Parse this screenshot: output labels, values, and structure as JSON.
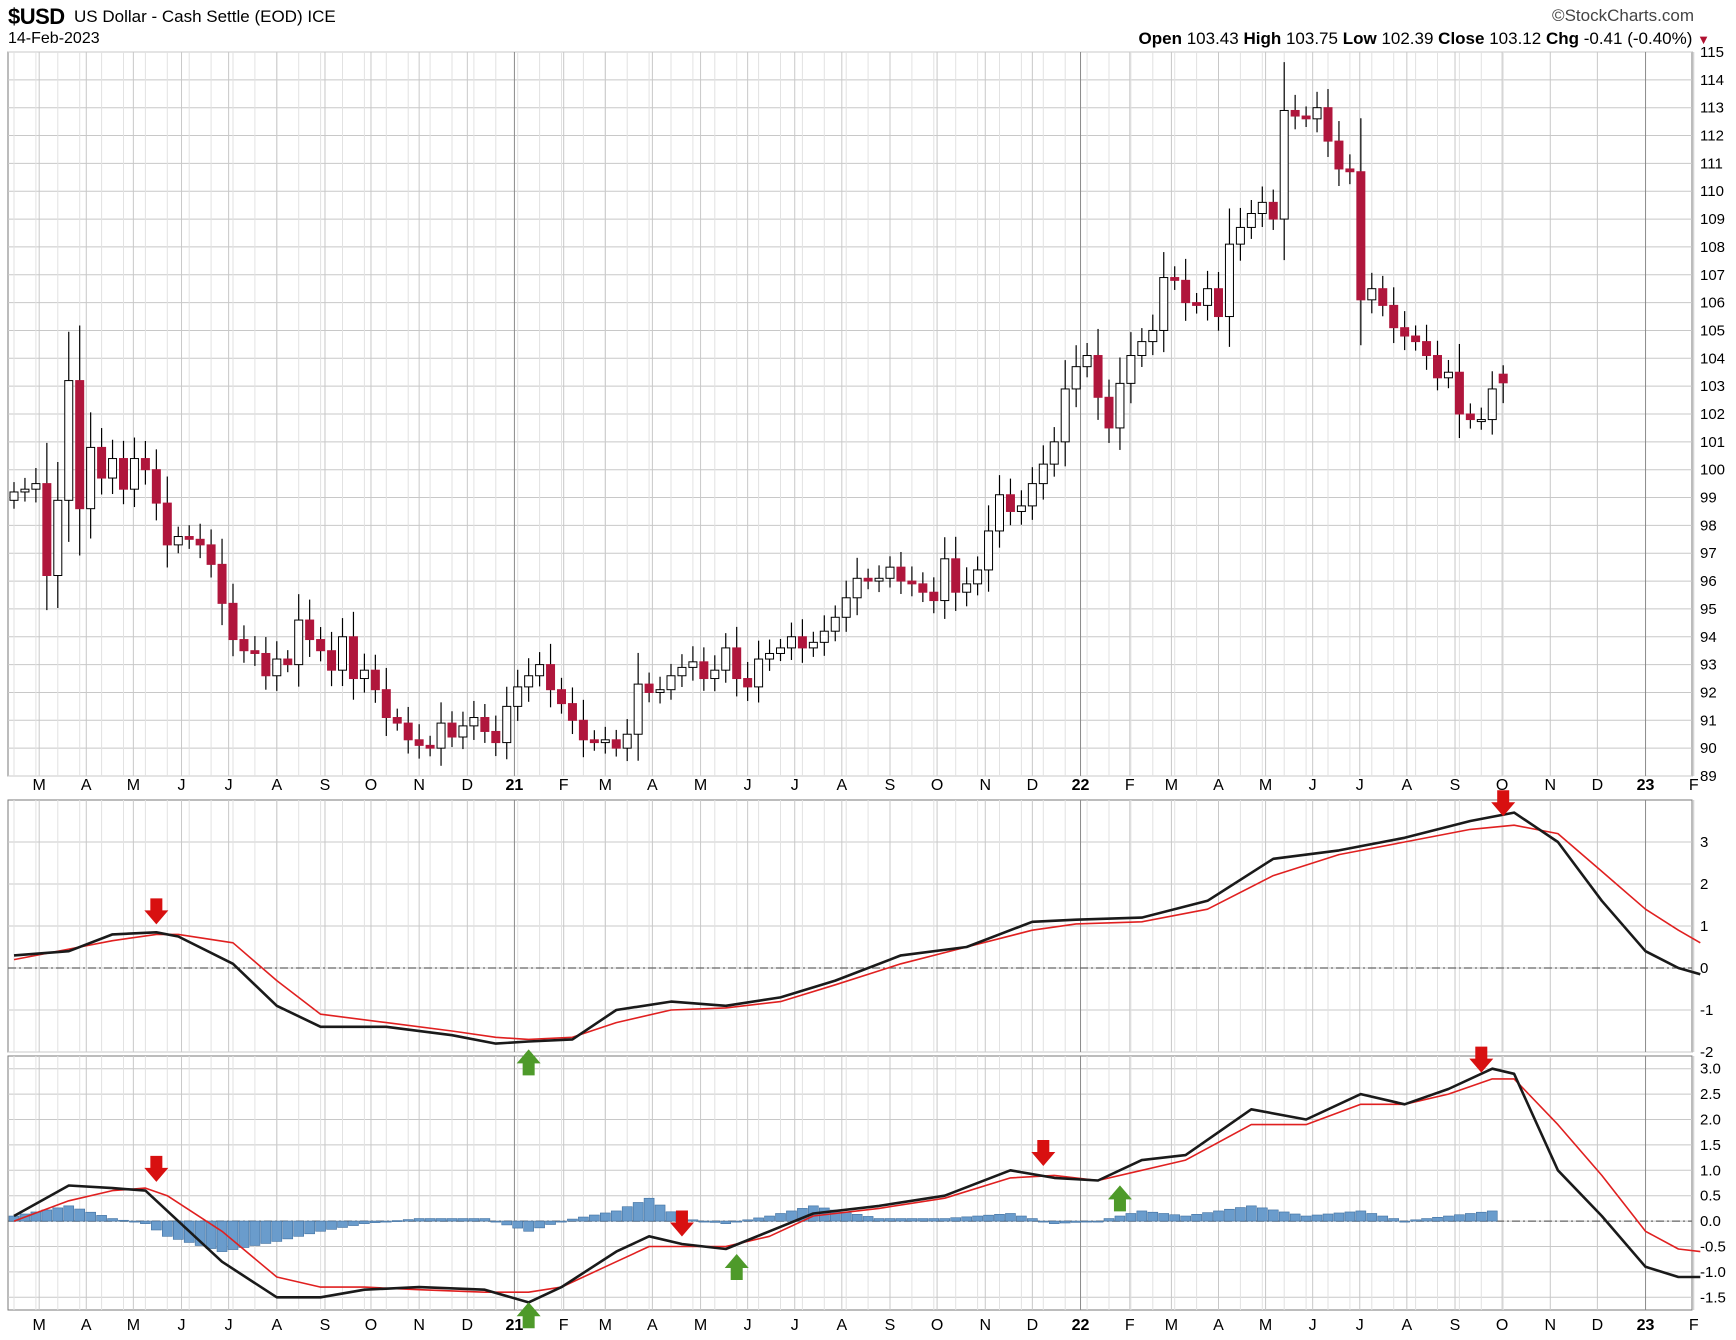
{
  "header": {
    "symbol": "$USD",
    "description": "US Dollar - Cash Settle (EOD)",
    "exchange": "ICE",
    "date": "14-Feb-2023",
    "brand": "©StockCharts.com",
    "open_label": "Open",
    "open": "103.43",
    "high_label": "High",
    "high": "103.75",
    "low_label": "Low",
    "low": "102.39",
    "close_label": "Close",
    "close": "103.12",
    "chg_label": "Chg",
    "chg": "-0.41 (-0.40%)"
  },
  "colors": {
    "up_candle": "#ffffff",
    "down_candle": "#b0163c",
    "candle_outline": "#000000",
    "signal_line": "#e02020",
    "macd_line": "#1a1a1a",
    "histogram": "#6a9ccc",
    "sell_arrow": "#d81010",
    "buy_arrow": "#4e9a2a",
    "grid": "#c8c8c8"
  },
  "chart_data": [
    {
      "type": "candlestick",
      "title": "",
      "ylim": [
        89,
        115
      ],
      "y_ticks": [
        89,
        90,
        91,
        92,
        93,
        94,
        95,
        96,
        97,
        98,
        99,
        100,
        101,
        102,
        103,
        104,
        105,
        106,
        107,
        108,
        109,
        110,
        111,
        112,
        113,
        114,
        115
      ],
      "x_ticks": [
        "M",
        "A",
        "M",
        "J",
        "J",
        "A",
        "S",
        "O",
        "N",
        "D",
        "21",
        "F",
        "M",
        "A",
        "M",
        "J",
        "J",
        "A",
        "S",
        "O",
        "N",
        "D",
        "22",
        "F",
        "M",
        "A",
        "M",
        "J",
        "J",
        "A",
        "S",
        "O",
        "N",
        "D",
        "23",
        "F"
      ],
      "x_tick_weeks": [
        2.3,
        6.6,
        10.9,
        15.3,
        19.6,
        24.0,
        28.4,
        32.6,
        37.0,
        41.4,
        45.7,
        50.2,
        54.0,
        58.3,
        62.7,
        67.0,
        71.3,
        75.6,
        80.0,
        84.3,
        88.7,
        93.0,
        97.4,
        101.9,
        105.7,
        110.0,
        114.3,
        118.6,
        122.9,
        127.2,
        131.6,
        135.9,
        140.3,
        144.6,
        149.0,
        153.4
      ],
      "major_x_ticks": [
        "21",
        "22",
        "23"
      ],
      "grid": true,
      "weekly_close": [
        99.2,
        99.3,
        99.5,
        96.2,
        98.9,
        103.2,
        98.6,
        100.8,
        99.7,
        100.4,
        99.3,
        100.4,
        100.0,
        98.8,
        97.3,
        97.6,
        97.5,
        97.3,
        96.6,
        95.2,
        93.9,
        93.5,
        93.4,
        92.6,
        93.2,
        93.0,
        94.6,
        93.9,
        93.5,
        92.8,
        94.0,
        92.5,
        92.8,
        92.1,
        91.1,
        90.9,
        90.3,
        90.1,
        90.0,
        90.9,
        90.4,
        90.8,
        91.1,
        90.6,
        90.2,
        91.5,
        92.2,
        92.6,
        93.0,
        92.1,
        91.6,
        91.0,
        90.3,
        90.2,
        90.3,
        90.0,
        90.5,
        92.3,
        92.0,
        92.1,
        92.6,
        92.9,
        93.1,
        92.5,
        92.8,
        93.6,
        92.5,
        92.2,
        93.2,
        93.4,
        93.6,
        94.0,
        93.6,
        93.8,
        94.2,
        94.7,
        95.4,
        96.1,
        96.0,
        96.1,
        96.5,
        96.0,
        95.9,
        95.6,
        95.3,
        96.8,
        95.6,
        95.9,
        96.4,
        97.8,
        99.1,
        98.5,
        98.7,
        99.5,
        100.2,
        101.0,
        102.9,
        103.7,
        104.1,
        102.6,
        101.5,
        103.1,
        104.1,
        104.6,
        105.0,
        106.9,
        106.8,
        106.0,
        105.9,
        106.5,
        105.5,
        108.1,
        108.7,
        109.2,
        109.6,
        109.0,
        112.9,
        112.7,
        112.6,
        113.0,
        111.8,
        110.8,
        110.7,
        106.1,
        106.5,
        105.9,
        105.1,
        104.8,
        104.6,
        104.1,
        103.3,
        103.5,
        102.0,
        101.8,
        101.8,
        102.9,
        103.12
      ],
      "last": {
        "open": 103.43,
        "high": 103.75,
        "low": 102.39,
        "close": 103.12
      }
    },
    {
      "type": "line",
      "title": "",
      "ylim": [
        -2,
        4
      ],
      "y_ticks": [
        -2,
        -1,
        0,
        1,
        2,
        3
      ],
      "reference_line": 0,
      "x": [
        0,
        5,
        9,
        13,
        15,
        20,
        24,
        28,
        34,
        40,
        44,
        47,
        51,
        55,
        60,
        65,
        70,
        75,
        81,
        87,
        93,
        97,
        103,
        109,
        115,
        121,
        127,
        133,
        137,
        141,
        145,
        149,
        152,
        154
      ],
      "series": [
        {
          "values": [
            0.3,
            0.4,
            0.8,
            0.85,
            0.75,
            0.1,
            -0.9,
            -1.4,
            -1.4,
            -1.6,
            -1.8,
            -1.75,
            -1.7,
            -1.0,
            -0.8,
            -0.9,
            -0.7,
            -0.3,
            0.3,
            0.5,
            1.1,
            1.15,
            1.2,
            1.6,
            2.6,
            2.8,
            3.1,
            3.5,
            3.7,
            3.0,
            1.6,
            0.4,
            0.0,
            -0.15
          ]
        },
        {
          "values": [
            0.2,
            0.45,
            0.65,
            0.8,
            0.8,
            0.6,
            -0.3,
            -1.1,
            -1.3,
            -1.5,
            -1.65,
            -1.7,
            -1.65,
            -1.3,
            -1.0,
            -0.95,
            -0.8,
            -0.4,
            0.1,
            0.5,
            0.9,
            1.05,
            1.1,
            1.4,
            2.2,
            2.7,
            3.0,
            3.3,
            3.4,
            3.2,
            2.3,
            1.4,
            0.9,
            0.6
          ]
        }
      ],
      "annotations": [
        {
          "type": "sell",
          "x": 13
        },
        {
          "type": "buy",
          "x": 47
        },
        {
          "type": "sell",
          "x": 136
        }
      ]
    },
    {
      "type": "line",
      "title": "",
      "ylim": [
        -1.75,
        3.25
      ],
      "y_ticks": [
        -1.5,
        -1.0,
        -0.5,
        0.0,
        0.5,
        1.0,
        1.5,
        2.0,
        2.5,
        3.0
      ],
      "reference_line": 0,
      "x": [
        0,
        5,
        9,
        12,
        14,
        19,
        24,
        28,
        32,
        37,
        43,
        47,
        50,
        55,
        58,
        61,
        65,
        69,
        73,
        79,
        85,
        91,
        95,
        99,
        103,
        107,
        113,
        118,
        123,
        127,
        131,
        135,
        137,
        141,
        145,
        149,
        152,
        154
      ],
      "series": [
        {
          "values": [
            0.1,
            0.7,
            0.65,
            0.6,
            0.2,
            -0.8,
            -1.5,
            -1.5,
            -1.35,
            -1.3,
            -1.35,
            -1.6,
            -1.3,
            -0.6,
            -0.3,
            -0.45,
            -0.55,
            -0.2,
            0.15,
            0.3,
            0.5,
            1.0,
            0.85,
            0.8,
            1.2,
            1.3,
            2.2,
            2.0,
            2.5,
            2.3,
            2.6,
            3.0,
            2.9,
            1.0,
            0.1,
            -0.9,
            -1.1,
            -1.1
          ]
        },
        {
          "values": [
            0.0,
            0.4,
            0.6,
            0.65,
            0.5,
            -0.2,
            -1.1,
            -1.3,
            -1.3,
            -1.35,
            -1.4,
            -1.4,
            -1.3,
            -0.8,
            -0.5,
            -0.5,
            -0.5,
            -0.3,
            0.1,
            0.25,
            0.45,
            0.85,
            0.9,
            0.8,
            1.0,
            1.2,
            1.9,
            1.9,
            2.3,
            2.3,
            2.5,
            2.8,
            2.8,
            1.9,
            0.9,
            -0.2,
            -0.55,
            -0.6
          ]
        },
        {
          "type": "bar",
          "values": [
            0.1,
            0.3,
            0.05,
            -0.05,
            -0.3,
            -0.6,
            -0.4,
            -0.2,
            -0.05,
            0.05,
            0.05,
            -0.2,
            0.0,
            0.2,
            0.45,
            0.05,
            -0.05,
            0.1,
            0.3,
            0.05,
            0.05,
            0.15,
            -0.05,
            0.0,
            0.2,
            0.1,
            0.3,
            0.1,
            0.2,
            0.0,
            0.1,
            0.2,
            0.1,
            -0.9,
            -0.8,
            -0.7,
            -0.55,
            -0.5
          ]
        }
      ],
      "annotations": [
        {
          "type": "sell",
          "x": 13
        },
        {
          "type": "buy",
          "x": 47
        },
        {
          "type": "sell",
          "x": 61
        },
        {
          "type": "buy",
          "x": 66
        },
        {
          "type": "sell",
          "x": 94
        },
        {
          "type": "buy",
          "x": 101
        },
        {
          "type": "sell",
          "x": 134
        }
      ]
    }
  ]
}
